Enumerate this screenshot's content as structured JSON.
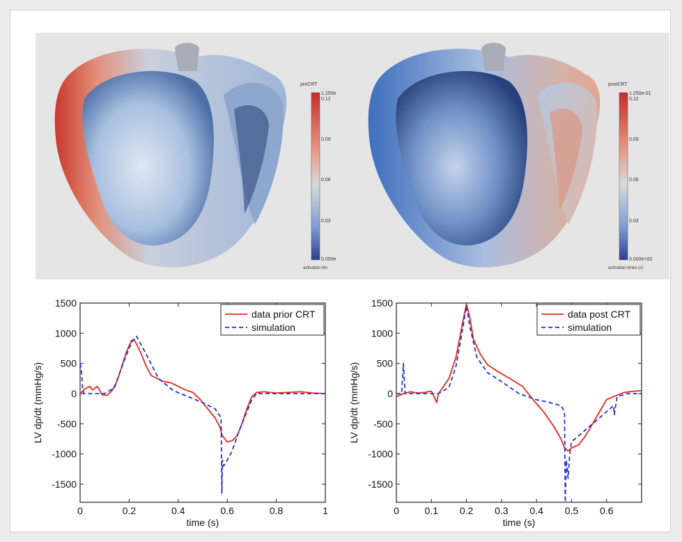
{
  "colors": {
    "blue_low": "#3b4fa3",
    "mid": "#dcdcdc",
    "red_high": "#c92a2a",
    "data_line": "#e8251b",
    "sim_line": "#1f2fd6"
  },
  "heatmaps": [
    {
      "colorbar_title": "preCRT",
      "colorbar_top": "1.250e",
      "colorbar_ticks": [
        "0.12",
        "0.09",
        "0.06",
        "0.03"
      ],
      "colorbar_bottom": "0.000e",
      "colorbar_caption": "activation tim"
    },
    {
      "colorbar_title": "postCRT",
      "colorbar_top": "1.250e-01",
      "colorbar_ticks": [
        "0.12",
        "0.09",
        "0.06",
        "0.03"
      ],
      "colorbar_bottom": "0.000e+00",
      "colorbar_caption": "activation times (s)"
    }
  ],
  "chart_data": [
    {
      "type": "line",
      "xlabel": "time (s)",
      "ylabel": "LV dp/dt (mmHg/s)",
      "xlim": [
        0,
        1
      ],
      "ylim": [
        -1800,
        1500
      ],
      "xticks": [
        0,
        0.2,
        0.4,
        0.6,
        0.8,
        1
      ],
      "xtick_labels": [
        "0",
        "0.2",
        "0.4",
        "0.6",
        "0.8",
        "1"
      ],
      "yticks": [
        1500,
        1000,
        500,
        0,
        -500,
        -1000,
        -1500
      ],
      "ytick_labels": [
        "1500",
        "1000",
        "500",
        "0",
        "-500",
        "-1000",
        "-1500"
      ],
      "legend_position": "top-right",
      "series": [
        {
          "name": "data prior CRT",
          "style": "solid",
          "x": [
            0,
            0.02,
            0.04,
            0.05,
            0.07,
            0.09,
            0.11,
            0.13,
            0.15,
            0.17,
            0.19,
            0.21,
            0.22,
            0.23,
            0.25,
            0.27,
            0.29,
            0.31,
            0.34,
            0.37,
            0.4,
            0.43,
            0.46,
            0.49,
            0.52,
            0.55,
            0.57,
            0.58,
            0.6,
            0.62,
            0.64,
            0.66,
            0.68,
            0.7,
            0.72,
            0.75,
            0.8,
            0.85,
            0.9,
            0.95,
            1.0
          ],
          "y": [
            0,
            80,
            120,
            60,
            120,
            -20,
            -30,
            50,
            200,
            450,
            700,
            880,
            900,
            820,
            650,
            450,
            300,
            260,
            200,
            180,
            120,
            60,
            20,
            -100,
            -250,
            -400,
            -550,
            -700,
            -800,
            -780,
            -700,
            -500,
            -250,
            -50,
            20,
            30,
            10,
            20,
            30,
            10,
            0
          ]
        },
        {
          "name": "simulation",
          "style": "dashed",
          "x": [
            0,
            0.005,
            0.01,
            0.015,
            0.03,
            0.06,
            0.1,
            0.14,
            0.18,
            0.21,
            0.23,
            0.27,
            0.32,
            0.38,
            0.44,
            0.5,
            0.55,
            0.575,
            0.578,
            0.58,
            0.585,
            0.6,
            0.62,
            0.65,
            0.68,
            0.7,
            0.72,
            0.8,
            0.9,
            1.0
          ],
          "y": [
            500,
            400,
            100,
            0,
            0,
            0,
            0,
            100,
            550,
            850,
            950,
            650,
            250,
            50,
            -50,
            -150,
            -250,
            -400,
            -1650,
            -1100,
            -1200,
            -1100,
            -950,
            -600,
            -300,
            -100,
            0,
            0,
            0,
            0
          ]
        }
      ]
    },
    {
      "type": "line",
      "xlabel": "time (s)",
      "ylabel": "LV dp/dt (mmHg/s)",
      "xlim": [
        0,
        0.7
      ],
      "ylim": [
        -1800,
        1500
      ],
      "xticks": [
        0,
        0.1,
        0.2,
        0.3,
        0.4,
        0.5,
        0.6
      ],
      "xtick_labels": [
        "0",
        "0.1",
        "0.2",
        "0.3",
        "0.4",
        "0.5",
        "0.6"
      ],
      "yticks": [
        1500,
        1000,
        500,
        0,
        -500,
        -1000,
        -1500
      ],
      "ytick_labels": [
        "1500",
        "1000",
        "500",
        "0",
        "-500",
        "-1000",
        "-1500"
      ],
      "legend_position": "top-right",
      "series": [
        {
          "name": "data post CRT",
          "style": "solid",
          "x": [
            0,
            0.02,
            0.04,
            0.06,
            0.08,
            0.1,
            0.11,
            0.115,
            0.12,
            0.13,
            0.15,
            0.17,
            0.18,
            0.19,
            0.2,
            0.21,
            0.22,
            0.24,
            0.26,
            0.28,
            0.3,
            0.33,
            0.36,
            0.39,
            0.42,
            0.45,
            0.47,
            0.48,
            0.49,
            0.5,
            0.52,
            0.54,
            0.56,
            0.58,
            0.6,
            0.62,
            0.65,
            0.68,
            0.7
          ],
          "y": [
            -50,
            0,
            30,
            10,
            20,
            40,
            -80,
            -150,
            0,
            80,
            250,
            600,
            900,
            1200,
            1480,
            1250,
            900,
            650,
            480,
            400,
            330,
            230,
            120,
            -100,
            -300,
            -550,
            -750,
            -900,
            -950,
            -900,
            -850,
            -700,
            -500,
            -300,
            -100,
            -50,
            20,
            40,
            50
          ]
        },
        {
          "name": "simulation",
          "style": "dashed",
          "x": [
            0,
            0.015,
            0.02,
            0.025,
            0.04,
            0.08,
            0.12,
            0.15,
            0.17,
            0.19,
            0.2,
            0.21,
            0.23,
            0.26,
            0.3,
            0.35,
            0.4,
            0.44,
            0.47,
            0.48,
            0.482,
            0.485,
            0.49,
            0.495,
            0.5,
            0.52,
            0.55,
            0.58,
            0.6,
            0.62,
            0.622,
            0.63,
            0.66,
            0.7
          ],
          "y": [
            0,
            0,
            500,
            0,
            0,
            0,
            0,
            100,
            450,
            1100,
            1450,
            1100,
            600,
            350,
            200,
            0,
            -100,
            -150,
            -200,
            -300,
            -1800,
            -1100,
            -1400,
            -1000,
            -800,
            -700,
            -550,
            -400,
            -300,
            -200,
            -350,
            -50,
            0,
            0
          ]
        }
      ]
    }
  ]
}
